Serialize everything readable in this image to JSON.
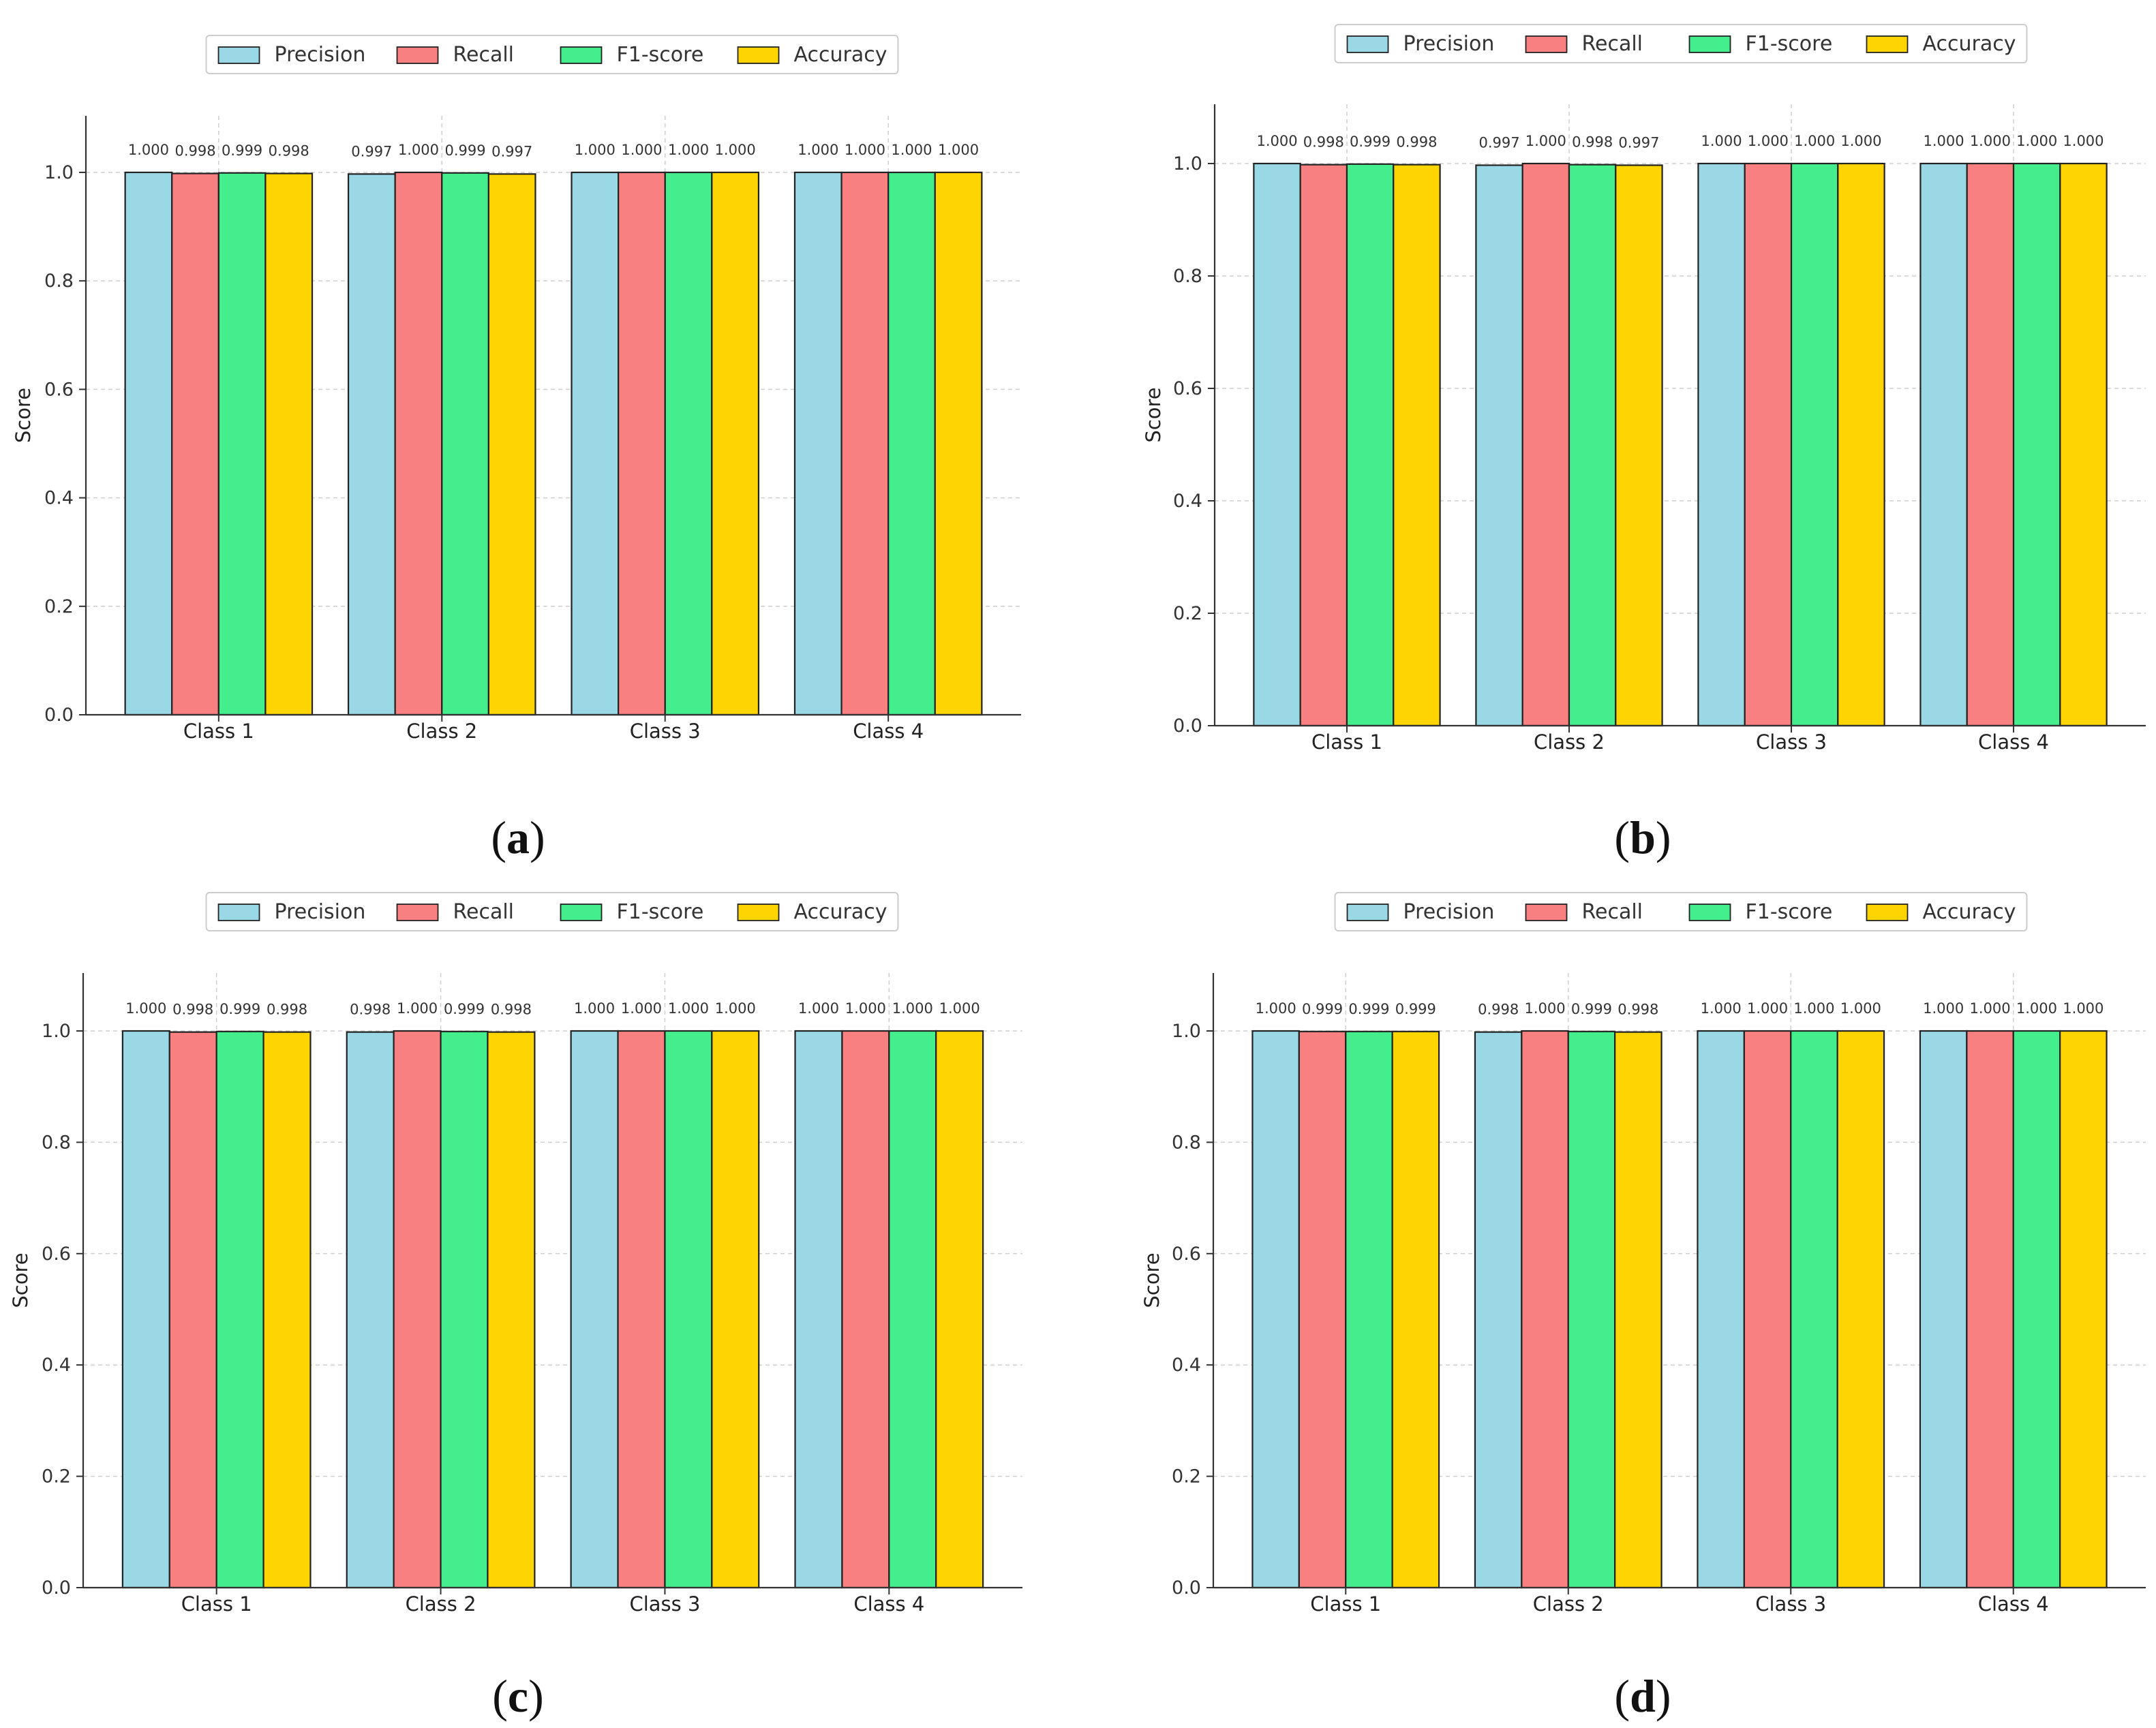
{
  "figure": {
    "panel_labels": [
      "(a)",
      "(b)",
      "(c)",
      "(d)"
    ]
  },
  "colors": {
    "Precision": "#9ad8e6",
    "Recall": "#f98080",
    "F1-score": "#45ee8c",
    "Accuracy": "#fed500",
    "edge": "#222222",
    "grid": "#cfcfcf",
    "legend_border": "#cccccc"
  },
  "chart_data": [
    {
      "type": "bar",
      "panel": "(a)",
      "categories": [
        "Class 1",
        "Class 2",
        "Class 3",
        "Class 4"
      ],
      "series": [
        {
          "name": "Precision",
          "values": [
            1.0,
            0.997,
            1.0,
            1.0
          ],
          "labels": [
            "1.000",
            "0.997",
            "1.000",
            "1.000"
          ]
        },
        {
          "name": "Recall",
          "values": [
            0.998,
            1.0,
            1.0,
            1.0
          ],
          "labels": [
            "0.998",
            "1.000",
            "1.000",
            "1.000"
          ]
        },
        {
          "name": "F1-score",
          "values": [
            0.999,
            0.999,
            1.0,
            1.0
          ],
          "labels": [
            "0.999",
            "0.999",
            "1.000",
            "1.000"
          ]
        },
        {
          "name": "Accuracy",
          "values": [
            0.998,
            0.997,
            1.0,
            1.0
          ],
          "labels": [
            "0.998",
            "0.997",
            "1.000",
            "1.000"
          ]
        }
      ],
      "ylabel": "Score",
      "ylim": [
        0,
        1.1
      ],
      "yticks": [
        "0.0",
        "0.2",
        "0.4",
        "0.6",
        "0.8",
        "1.0"
      ],
      "legend": "top-center",
      "grid": true
    },
    {
      "type": "bar",
      "panel": "(b)",
      "categories": [
        "Class 1",
        "Class 2",
        "Class 3",
        "Class 4"
      ],
      "series": [
        {
          "name": "Precision",
          "values": [
            1.0,
            0.997,
            1.0,
            1.0
          ],
          "labels": [
            "1.000",
            "0.997",
            "1.000",
            "1.000"
          ]
        },
        {
          "name": "Recall",
          "values": [
            0.998,
            1.0,
            1.0,
            1.0
          ],
          "labels": [
            "0.998",
            "1.000",
            "1.000",
            "1.000"
          ]
        },
        {
          "name": "F1-score",
          "values": [
            0.999,
            0.998,
            1.0,
            1.0
          ],
          "labels": [
            "0.999",
            "0.998",
            "1.000",
            "1.000"
          ]
        },
        {
          "name": "Accuracy",
          "values": [
            0.998,
            0.997,
            1.0,
            1.0
          ],
          "labels": [
            "0.998",
            "0.997",
            "1.000",
            "1.000"
          ]
        }
      ],
      "ylabel": "Score",
      "ylim": [
        0,
        1.1
      ],
      "yticks": [
        "0.0",
        "0.2",
        "0.4",
        "0.6",
        "0.8",
        "1.0"
      ],
      "legend": "top-center",
      "grid": true
    },
    {
      "type": "bar",
      "panel": "(c)",
      "categories": [
        "Class 1",
        "Class 2",
        "Class 3",
        "Class 4"
      ],
      "series": [
        {
          "name": "Precision",
          "values": [
            1.0,
            0.998,
            1.0,
            1.0
          ],
          "labels": [
            "1.000",
            "0.998",
            "1.000",
            "1.000"
          ]
        },
        {
          "name": "Recall",
          "values": [
            0.998,
            1.0,
            1.0,
            1.0
          ],
          "labels": [
            "0.998",
            "1.000",
            "1.000",
            "1.000"
          ]
        },
        {
          "name": "F1-score",
          "values": [
            0.999,
            0.999,
            1.0,
            1.0
          ],
          "labels": [
            "0.999",
            "0.999",
            "1.000",
            "1.000"
          ]
        },
        {
          "name": "Accuracy",
          "values": [
            0.998,
            0.998,
            1.0,
            1.0
          ],
          "labels": [
            "0.998",
            "0.998",
            "1.000",
            "1.000"
          ]
        }
      ],
      "ylabel": "Score",
      "ylim": [
        0,
        1.1
      ],
      "yticks": [
        "0.0",
        "0.2",
        "0.4",
        "0.6",
        "0.8",
        "1.0"
      ],
      "legend": "top-center",
      "grid": true
    },
    {
      "type": "bar",
      "panel": "(d)",
      "categories": [
        "Class 1",
        "Class 2",
        "Class 3",
        "Class 4"
      ],
      "series": [
        {
          "name": "Precision",
          "values": [
            1.0,
            0.998,
            1.0,
            1.0
          ],
          "labels": [
            "1.000",
            "0.998",
            "1.000",
            "1.000"
          ]
        },
        {
          "name": "Recall",
          "values": [
            0.999,
            1.0,
            1.0,
            1.0
          ],
          "labels": [
            "0.999",
            "1.000",
            "1.000",
            "1.000"
          ]
        },
        {
          "name": "F1-score",
          "values": [
            0.999,
            0.999,
            1.0,
            1.0
          ],
          "labels": [
            "0.999",
            "0.999",
            "1.000",
            "1.000"
          ]
        },
        {
          "name": "Accuracy",
          "values": [
            0.999,
            0.998,
            1.0,
            1.0
          ],
          "labels": [
            "0.999",
            "0.998",
            "1.000",
            "1.000"
          ]
        }
      ],
      "ylabel": "Score",
      "ylim": [
        0,
        1.1
      ],
      "yticks": [
        "0.0",
        "0.2",
        "0.4",
        "0.6",
        "0.8",
        "1.0"
      ],
      "legend": "top-center",
      "grid": true
    }
  ]
}
